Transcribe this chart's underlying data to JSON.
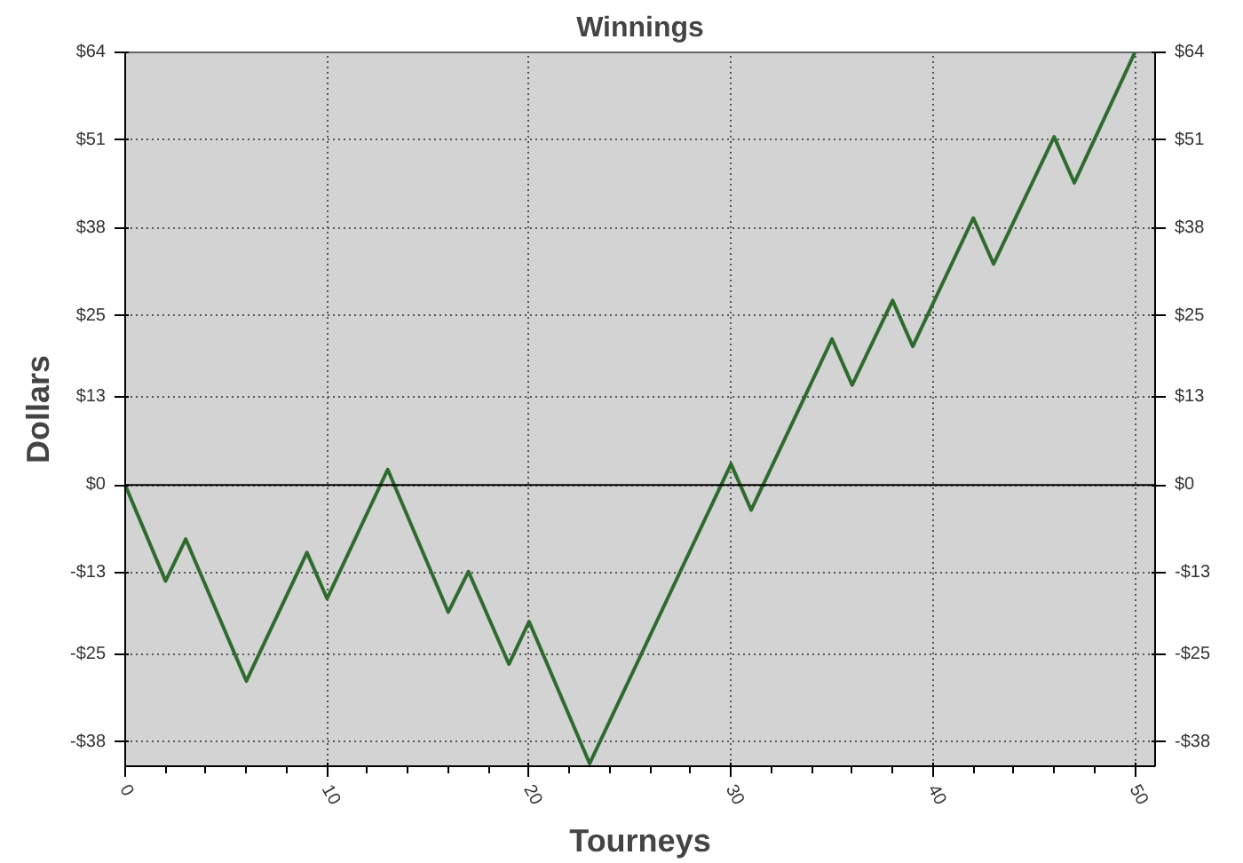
{
  "chart_data": {
    "type": "line",
    "title": "Winnings",
    "xlabel": "Tourneys",
    "ylabel": "Dollars",
    "x": [
      0,
      2,
      3,
      6,
      9,
      10,
      13,
      16,
      17,
      19,
      20,
      23,
      30,
      31,
      35,
      36,
      38,
      39,
      42,
      43,
      46,
      47,
      50
    ],
    "series": [
      {
        "color": "#2e6b2e",
        "values": [
          0,
          -14.2,
          -8,
          -29,
          -10,
          -16.8,
          2.3,
          -18.8,
          -12.8,
          -26.5,
          -20.2,
          -41.2,
          3.1,
          -3.7,
          21.6,
          14.8,
          27.3,
          20.5,
          39.5,
          32.7,
          51.5,
          44.7,
          64
        ]
      }
    ],
    "xlim": [
      0,
      51
    ],
    "xticks": [
      0,
      10,
      20,
      30,
      40,
      50
    ],
    "ylim": [
      -41.6,
      64
    ],
    "yticks": [
      {
        "value": -38,
        "label": "-$38"
      },
      {
        "value": -25,
        "label": "-$25"
      },
      {
        "value": -13,
        "label": "-$13"
      },
      {
        "value": 0,
        "label": "$0"
      },
      {
        "value": 13,
        "label": "$13"
      },
      {
        "value": 25,
        "label": "$25"
      },
      {
        "value": 38,
        "label": "$38"
      },
      {
        "value": 51,
        "label": "$51"
      },
      {
        "value": 64,
        "label": "$64"
      }
    ],
    "y2lim": [
      -41.6,
      64
    ],
    "y2ticks": [
      {
        "value": -38,
        "label": "-$38"
      },
      {
        "value": -25,
        "label": "-$25"
      },
      {
        "value": -13,
        "label": "-$13"
      },
      {
        "value": 0,
        "label": "$0"
      },
      {
        "value": 13,
        "label": "$13"
      },
      {
        "value": 25,
        "label": "$25"
      },
      {
        "value": 38,
        "label": "$38"
      },
      {
        "value": 51,
        "label": "$51"
      },
      {
        "value": 64,
        "label": "$64"
      }
    ],
    "ref_lines": [
      {
        "axis": "y",
        "value": 0,
        "color": "#000000"
      }
    ],
    "grid": true,
    "marker": "none",
    "line_style": "solid"
  }
}
